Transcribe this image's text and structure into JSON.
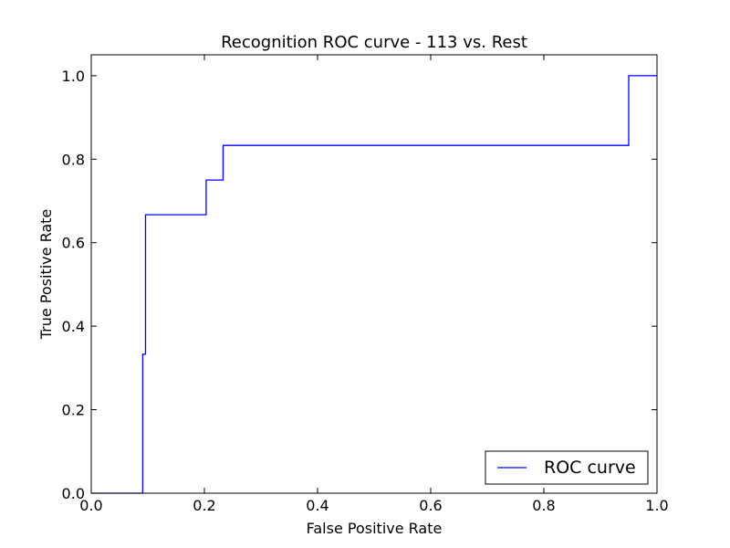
{
  "chart_data": {
    "type": "line",
    "title": "Recognition ROC curve - 113 vs. Rest",
    "xlabel": "False Positive Rate",
    "ylabel": "True Positive Rate",
    "xlim": [
      0.0,
      1.0
    ],
    "ylim": [
      0.0,
      1.05
    ],
    "x_ticks": [
      0.0,
      0.2,
      0.4,
      0.6,
      0.8,
      1.0
    ],
    "x_tick_labels": [
      "0.0",
      "0.2",
      "0.4",
      "0.6",
      "0.8",
      "1.0"
    ],
    "y_ticks": [
      0.0,
      0.2,
      0.4,
      0.6,
      0.8,
      1.0
    ],
    "y_tick_labels": [
      "0.0",
      "0.2",
      "0.4",
      "0.6",
      "0.8",
      "1.0"
    ],
    "grid": false,
    "legend_position": "lower-right",
    "series": [
      {
        "name": "ROC curve",
        "color": "#0000ff",
        "x": [
          0.0,
          0.091,
          0.091,
          0.096,
          0.096,
          0.203,
          0.203,
          0.233,
          0.233,
          0.95,
          0.95,
          1.0
        ],
        "y": [
          0.0,
          0.0,
          0.333,
          0.333,
          0.667,
          0.667,
          0.75,
          0.75,
          0.833,
          0.833,
          1.0,
          1.0
        ]
      }
    ]
  }
}
